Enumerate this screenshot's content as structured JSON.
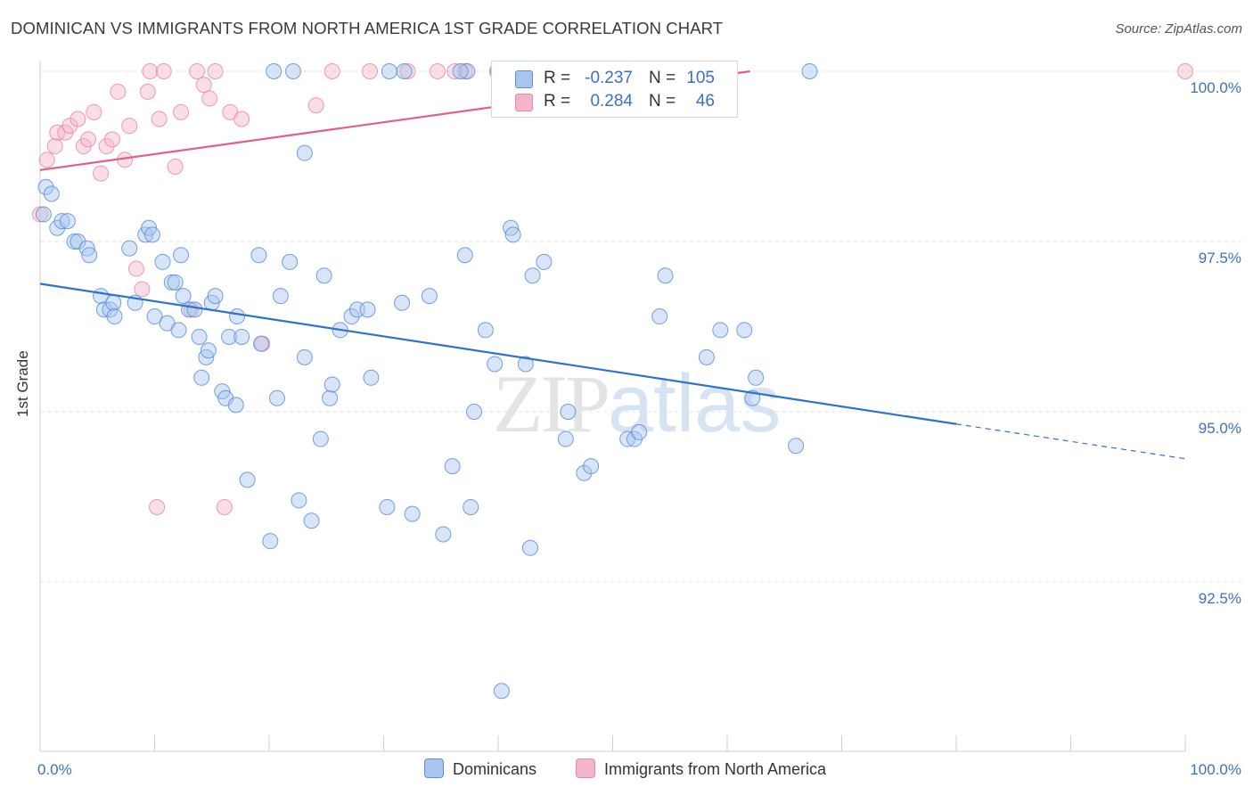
{
  "title": "DOMINICAN VS IMMIGRANTS FROM NORTH AMERICA 1ST GRADE CORRELATION CHART",
  "source": "Source: ZipAtlas.com",
  "watermark": {
    "zip": "ZIP",
    "atlas": "atlas"
  },
  "legend_top": {
    "rows": [
      {
        "r_label": "R =",
        "r_value": "-0.237",
        "n_label": "N =",
        "n_value": "105"
      },
      {
        "r_label": "R =",
        "r_value": "0.284",
        "n_label": "N =",
        "n_value": "46"
      }
    ]
  },
  "legend_bottom": {
    "items": [
      "Dominicans",
      "Immigrants from North America"
    ]
  },
  "colors": {
    "blue_fill": "#a9c6ef",
    "blue_stroke": "#5b8fd8",
    "blue_line": "#2f72cc",
    "pink_fill": "#f5b5c8",
    "pink_stroke": "#e88aa6",
    "pink_line": "#e0608a",
    "tick_label": "#3f6fc4",
    "grid": "#e3e3e3"
  },
  "chart_data": {
    "type": "scatter",
    "title": "DOMINICAN VS IMMIGRANTS FROM NORTH AMERICA 1ST GRADE CORRELATION CHART",
    "xlabel": "",
    "ylabel": "1st Grade",
    "xlim": [
      0,
      100
    ],
    "ylim": [
      90.7,
      100.2
    ],
    "x_tick_labels": [
      "0.0%",
      "100.0%"
    ],
    "y_ticks": [
      92.5,
      95.0,
      97.5,
      100.0
    ],
    "y_tick_labels": [
      "92.5%",
      "95.0%",
      "97.5%",
      "100.0%"
    ],
    "grid": true,
    "legend_position": "bottom",
    "series": [
      {
        "name": "Dominicans",
        "R": -0.237,
        "N": 105,
        "trend": {
          "x0": 0,
          "y0": 96.88,
          "x1": 80,
          "y1": 94.82,
          "dash_to_x": 100,
          "dash_to_y": 94.31
        },
        "points": [
          [
            0.3,
            97.9
          ],
          [
            0.5,
            98.3
          ],
          [
            1.0,
            98.2
          ],
          [
            1.5,
            97.7
          ],
          [
            1.9,
            97.8
          ],
          [
            2.4,
            97.8
          ],
          [
            3.0,
            97.5
          ],
          [
            3.3,
            97.5
          ],
          [
            4.1,
            97.4
          ],
          [
            4.3,
            97.3
          ],
          [
            5.3,
            96.7
          ],
          [
            5.6,
            96.5
          ],
          [
            6.1,
            96.5
          ],
          [
            6.4,
            96.6
          ],
          [
            7.8,
            97.4
          ],
          [
            8.3,
            96.6
          ],
          [
            6.5,
            96.4
          ],
          [
            9.2,
            97.6
          ],
          [
            9.5,
            97.7
          ],
          [
            9.8,
            97.6
          ],
          [
            10.0,
            96.4
          ],
          [
            10.7,
            97.2
          ],
          [
            11.1,
            96.3
          ],
          [
            11.5,
            96.9
          ],
          [
            11.8,
            96.9
          ],
          [
            12.1,
            96.2
          ],
          [
            12.3,
            97.3
          ],
          [
            12.5,
            96.7
          ],
          [
            13.0,
            96.5
          ],
          [
            13.5,
            96.5
          ],
          [
            13.9,
            96.1
          ],
          [
            14.1,
            95.5
          ],
          [
            14.5,
            95.8
          ],
          [
            14.7,
            95.9
          ],
          [
            15.0,
            96.6
          ],
          [
            15.3,
            96.7
          ],
          [
            15.9,
            95.3
          ],
          [
            16.2,
            95.2
          ],
          [
            16.5,
            96.1
          ],
          [
            17.1,
            95.1
          ],
          [
            17.2,
            96.4
          ],
          [
            17.6,
            96.1
          ],
          [
            18.1,
            94.0
          ],
          [
            19.1,
            97.3
          ],
          [
            19.3,
            96.0
          ],
          [
            20.1,
            93.1
          ],
          [
            20.7,
            95.2
          ],
          [
            21.0,
            96.7
          ],
          [
            21.8,
            97.2
          ],
          [
            22.6,
            93.7
          ],
          [
            23.1,
            95.8
          ],
          [
            23.7,
            93.4
          ],
          [
            24.5,
            94.6
          ],
          [
            24.8,
            97.0
          ],
          [
            25.3,
            95.2
          ],
          [
            26.2,
            96.2
          ],
          [
            25.5,
            95.4
          ],
          [
            27.2,
            96.4
          ],
          [
            27.7,
            96.5
          ],
          [
            28.6,
            96.5
          ],
          [
            28.9,
            95.5
          ],
          [
            30.3,
            93.6
          ],
          [
            31.6,
            96.6
          ],
          [
            32.5,
            93.5
          ],
          [
            34.0,
            96.7
          ],
          [
            35.2,
            93.2
          ],
          [
            36.0,
            94.2
          ],
          [
            37.1,
            97.3
          ],
          [
            37.6,
            93.6
          ],
          [
            37.9,
            95.0
          ],
          [
            38.9,
            96.2
          ],
          [
            39.7,
            95.7
          ],
          [
            41.1,
            97.7
          ],
          [
            41.3,
            97.6
          ],
          [
            42.4,
            95.7
          ],
          [
            42.8,
            93.0
          ],
          [
            43.0,
            97.0
          ],
          [
            44.0,
            97.2
          ],
          [
            45.9,
            94.6
          ],
          [
            46.1,
            95.0
          ],
          [
            47.5,
            94.1
          ],
          [
            48.1,
            94.2
          ],
          [
            51.3,
            94.6
          ],
          [
            51.9,
            94.6
          ],
          [
            52.3,
            94.7
          ],
          [
            54.1,
            96.4
          ],
          [
            54.6,
            97.0
          ],
          [
            58.2,
            95.8
          ],
          [
            59.4,
            96.2
          ],
          [
            61.5,
            96.2
          ],
          [
            62.2,
            95.2
          ],
          [
            62.5,
            95.5
          ],
          [
            66.0,
            94.5
          ],
          [
            40.3,
            90.9
          ],
          [
            20.4,
            100.0
          ],
          [
            22.1,
            100.0
          ],
          [
            23.1,
            98.8
          ],
          [
            30.5,
            100.0
          ],
          [
            31.8,
            100.0
          ],
          [
            37.3,
            100.0
          ],
          [
            36.7,
            100.0
          ],
          [
            40.0,
            100.0
          ],
          [
            41.2,
            100.0
          ],
          [
            42.5,
            100.0
          ],
          [
            67.2,
            100.0
          ]
        ]
      },
      {
        "name": "Immigrants from North America",
        "R": 0.284,
        "N": 46,
        "trend": {
          "x0": 0,
          "y0": 98.55,
          "x1": 62,
          "y1": 100.0
        },
        "points": [
          [
            0.0,
            97.9
          ],
          [
            0.6,
            98.7
          ],
          [
            1.3,
            98.9
          ],
          [
            1.5,
            99.1
          ],
          [
            2.2,
            99.1
          ],
          [
            2.6,
            99.2
          ],
          [
            3.3,
            99.3
          ],
          [
            3.8,
            98.9
          ],
          [
            4.2,
            99.0
          ],
          [
            4.7,
            99.4
          ],
          [
            5.3,
            98.5
          ],
          [
            5.8,
            98.9
          ],
          [
            6.3,
            99.0
          ],
          [
            6.8,
            99.7
          ],
          [
            7.4,
            98.7
          ],
          [
            7.8,
            99.2
          ],
          [
            8.4,
            97.1
          ],
          [
            8.9,
            96.8
          ],
          [
            9.4,
            99.7
          ],
          [
            9.6,
            100.0
          ],
          [
            10.4,
            99.3
          ],
          [
            10.8,
            100.0
          ],
          [
            11.8,
            98.6
          ],
          [
            12.3,
            99.4
          ],
          [
            13.2,
            96.5
          ],
          [
            13.7,
            100.0
          ],
          [
            14.3,
            99.8
          ],
          [
            14.8,
            99.6
          ],
          [
            15.3,
            100.0
          ],
          [
            16.6,
            99.4
          ],
          [
            17.6,
            99.3
          ],
          [
            19.4,
            96.0
          ],
          [
            24.1,
            99.5
          ],
          [
            25.5,
            100.0
          ],
          [
            28.8,
            100.0
          ],
          [
            32.1,
            100.0
          ],
          [
            34.7,
            100.0
          ],
          [
            36.2,
            100.0
          ],
          [
            37.1,
            100.0
          ],
          [
            39.9,
            100.0
          ],
          [
            40.3,
            100.0
          ],
          [
            41.2,
            100.0
          ],
          [
            100.0,
            100.0
          ],
          [
            10.2,
            93.6
          ],
          [
            16.1,
            93.6
          ],
          [
            44.5,
            100.0
          ]
        ]
      }
    ]
  }
}
